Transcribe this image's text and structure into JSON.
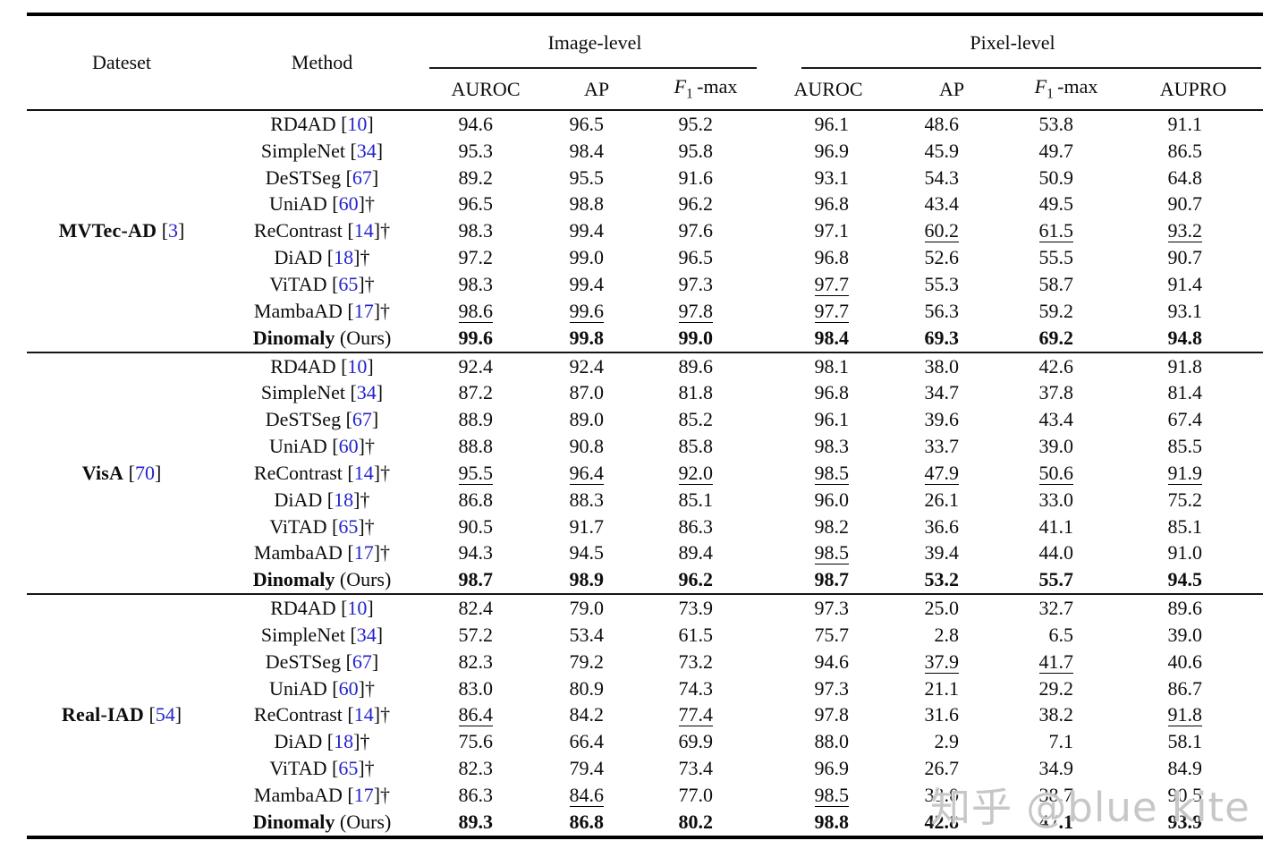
{
  "header": {
    "dataset_label": "Dateset",
    "method_label": "Method",
    "image_level_label": "Image-level",
    "pixel_level_label": "Pixel-level",
    "image_subcols": [
      "AUROC",
      "AP",
      "F1-max"
    ],
    "pixel_subcols": [
      "AUROC",
      "AP",
      "F1-max",
      "AUPRO"
    ]
  },
  "colors": {
    "citation_blue": "#2323cc",
    "text": "#0d0d0d",
    "watermark_gray": "#c7c7c7"
  },
  "groups": [
    {
      "dataset": {
        "name": "MVTec-AD",
        "cite": "3"
      },
      "rows": [
        {
          "method": {
            "name": "RD4AD",
            "cite": "10",
            "dagger": ""
          },
          "cells": [
            [
              "94.6",
              "n"
            ],
            [
              "96.5",
              "n"
            ],
            [
              "95.2",
              "n"
            ],
            [
              "96.1",
              "n"
            ],
            [
              "48.6",
              "n"
            ],
            [
              "53.8",
              "n"
            ],
            [
              "91.1",
              "n"
            ]
          ]
        },
        {
          "method": {
            "name": "SimpleNet",
            "cite": "34",
            "dagger": ""
          },
          "cells": [
            [
              "95.3",
              "n"
            ],
            [
              "98.4",
              "n"
            ],
            [
              "95.8",
              "n"
            ],
            [
              "96.9",
              "n"
            ],
            [
              "45.9",
              "n"
            ],
            [
              "49.7",
              "n"
            ],
            [
              "86.5",
              "n"
            ]
          ]
        },
        {
          "method": {
            "name": "DeSTSeg",
            "cite": "67",
            "dagger": ""
          },
          "cells": [
            [
              "89.2",
              "n"
            ],
            [
              "95.5",
              "n"
            ],
            [
              "91.6",
              "n"
            ],
            [
              "93.1",
              "n"
            ],
            [
              "54.3",
              "n"
            ],
            [
              "50.9",
              "n"
            ],
            [
              "64.8",
              "n"
            ]
          ]
        },
        {
          "method": {
            "name": "UniAD",
            "cite": "60",
            "dagger": "†"
          },
          "cells": [
            [
              "96.5",
              "n"
            ],
            [
              "98.8",
              "n"
            ],
            [
              "96.2",
              "n"
            ],
            [
              "96.8",
              "n"
            ],
            [
              "43.4",
              "n"
            ],
            [
              "49.5",
              "n"
            ],
            [
              "90.7",
              "n"
            ]
          ]
        },
        {
          "method": {
            "name": "ReContrast",
            "cite": "14",
            "dagger": "†"
          },
          "cells": [
            [
              "98.3",
              "n"
            ],
            [
              "99.4",
              "n"
            ],
            [
              "97.6",
              "n"
            ],
            [
              "97.1",
              "n"
            ],
            [
              "60.2",
              "u"
            ],
            [
              "61.5",
              "u"
            ],
            [
              "93.2",
              "u"
            ]
          ]
        },
        {
          "method": {
            "name": "DiAD",
            "cite": "18",
            "dagger": "†"
          },
          "cells": [
            [
              "97.2",
              "n"
            ],
            [
              "99.0",
              "n"
            ],
            [
              "96.5",
              "n"
            ],
            [
              "96.8",
              "n"
            ],
            [
              "52.6",
              "n"
            ],
            [
              "55.5",
              "n"
            ],
            [
              "90.7",
              "n"
            ]
          ]
        },
        {
          "method": {
            "name": "ViTAD",
            "cite": "65",
            "dagger": "†"
          },
          "cells": [
            [
              "98.3",
              "n"
            ],
            [
              "99.4",
              "n"
            ],
            [
              "97.3",
              "n"
            ],
            [
              "97.7",
              "u"
            ],
            [
              "55.3",
              "n"
            ],
            [
              "58.7",
              "n"
            ],
            [
              "91.4",
              "n"
            ]
          ]
        },
        {
          "method": {
            "name": "MambaAD",
            "cite": "17",
            "dagger": "†"
          },
          "cells": [
            [
              "98.6",
              "u"
            ],
            [
              "99.6",
              "u"
            ],
            [
              "97.8",
              "u"
            ],
            [
              "97.7",
              "u"
            ],
            [
              "56.3",
              "n"
            ],
            [
              "59.2",
              "n"
            ],
            [
              "93.1",
              "n"
            ]
          ]
        },
        {
          "method": {
            "name": "Dinomaly",
            "ours": true,
            "suffix": "(Ours)"
          },
          "cells": [
            [
              "99.6",
              "b"
            ],
            [
              "99.8",
              "b"
            ],
            [
              "99.0",
              "b"
            ],
            [
              "98.4",
              "b"
            ],
            [
              "69.3",
              "b"
            ],
            [
              "69.2",
              "b"
            ],
            [
              "94.8",
              "b"
            ]
          ]
        }
      ]
    },
    {
      "dataset": {
        "name": "VisA",
        "cite": "70"
      },
      "rows": [
        {
          "method": {
            "name": "RD4AD",
            "cite": "10",
            "dagger": ""
          },
          "cells": [
            [
              "92.4",
              "n"
            ],
            [
              "92.4",
              "n"
            ],
            [
              "89.6",
              "n"
            ],
            [
              "98.1",
              "n"
            ],
            [
              "38.0",
              "n"
            ],
            [
              "42.6",
              "n"
            ],
            [
              "91.8",
              "n"
            ]
          ]
        },
        {
          "method": {
            "name": "SimpleNet",
            "cite": "34",
            "dagger": ""
          },
          "cells": [
            [
              "87.2",
              "n"
            ],
            [
              "87.0",
              "n"
            ],
            [
              "81.8",
              "n"
            ],
            [
              "96.8",
              "n"
            ],
            [
              "34.7",
              "n"
            ],
            [
              "37.8",
              "n"
            ],
            [
              "81.4",
              "n"
            ]
          ]
        },
        {
          "method": {
            "name": "DeSTSeg",
            "cite": "67",
            "dagger": ""
          },
          "cells": [
            [
              "88.9",
              "n"
            ],
            [
              "89.0",
              "n"
            ],
            [
              "85.2",
              "n"
            ],
            [
              "96.1",
              "n"
            ],
            [
              "39.6",
              "n"
            ],
            [
              "43.4",
              "n"
            ],
            [
              "67.4",
              "n"
            ]
          ]
        },
        {
          "method": {
            "name": "UniAD",
            "cite": "60",
            "dagger": "†"
          },
          "cells": [
            [
              "88.8",
              "n"
            ],
            [
              "90.8",
              "n"
            ],
            [
              "85.8",
              "n"
            ],
            [
              "98.3",
              "n"
            ],
            [
              "33.7",
              "n"
            ],
            [
              "39.0",
              "n"
            ],
            [
              "85.5",
              "n"
            ]
          ]
        },
        {
          "method": {
            "name": "ReContrast",
            "cite": "14",
            "dagger": "†"
          },
          "cells": [
            [
              "95.5",
              "u"
            ],
            [
              "96.4",
              "u"
            ],
            [
              "92.0",
              "u"
            ],
            [
              "98.5",
              "u"
            ],
            [
              "47.9",
              "u"
            ],
            [
              "50.6",
              "u"
            ],
            [
              "91.9",
              "u"
            ]
          ]
        },
        {
          "method": {
            "name": "DiAD",
            "cite": "18",
            "dagger": "†"
          },
          "cells": [
            [
              "86.8",
              "n"
            ],
            [
              "88.3",
              "n"
            ],
            [
              "85.1",
              "n"
            ],
            [
              "96.0",
              "n"
            ],
            [
              "26.1",
              "n"
            ],
            [
              "33.0",
              "n"
            ],
            [
              "75.2",
              "n"
            ]
          ]
        },
        {
          "method": {
            "name": "ViTAD",
            "cite": "65",
            "dagger": "†"
          },
          "cells": [
            [
              "90.5",
              "n"
            ],
            [
              "91.7",
              "n"
            ],
            [
              "86.3",
              "n"
            ],
            [
              "98.2",
              "n"
            ],
            [
              "36.6",
              "n"
            ],
            [
              "41.1",
              "n"
            ],
            [
              "85.1",
              "n"
            ]
          ]
        },
        {
          "method": {
            "name": "MambaAD",
            "cite": "17",
            "dagger": "†"
          },
          "cells": [
            [
              "94.3",
              "n"
            ],
            [
              "94.5",
              "n"
            ],
            [
              "89.4",
              "n"
            ],
            [
              "98.5",
              "u"
            ],
            [
              "39.4",
              "n"
            ],
            [
              "44.0",
              "n"
            ],
            [
              "91.0",
              "n"
            ]
          ]
        },
        {
          "method": {
            "name": "Dinomaly",
            "ours": true,
            "suffix": "(Ours)"
          },
          "cells": [
            [
              "98.7",
              "b"
            ],
            [
              "98.9",
              "b"
            ],
            [
              "96.2",
              "b"
            ],
            [
              "98.7",
              "b"
            ],
            [
              "53.2",
              "b"
            ],
            [
              "55.7",
              "b"
            ],
            [
              "94.5",
              "b"
            ]
          ]
        }
      ]
    },
    {
      "dataset": {
        "name": "Real-IAD",
        "cite": "54"
      },
      "rows": [
        {
          "method": {
            "name": "RD4AD",
            "cite": "10",
            "dagger": ""
          },
          "cells": [
            [
              "82.4",
              "n"
            ],
            [
              "79.0",
              "n"
            ],
            [
              "73.9",
              "n"
            ],
            [
              "97.3",
              "n"
            ],
            [
              "25.0",
              "n"
            ],
            [
              "32.7",
              "n"
            ],
            [
              "89.6",
              "n"
            ]
          ]
        },
        {
          "method": {
            "name": "SimpleNet",
            "cite": "34",
            "dagger": ""
          },
          "cells": [
            [
              "57.2",
              "n"
            ],
            [
              "53.4",
              "n"
            ],
            [
              "61.5",
              "n"
            ],
            [
              "75.7",
              "n"
            ],
            [
              "2.8",
              "n"
            ],
            [
              "6.5",
              "n"
            ],
            [
              "39.0",
              "n"
            ]
          ]
        },
        {
          "method": {
            "name": "DeSTSeg",
            "cite": "67",
            "dagger": ""
          },
          "cells": [
            [
              "82.3",
              "n"
            ],
            [
              "79.2",
              "n"
            ],
            [
              "73.2",
              "n"
            ],
            [
              "94.6",
              "n"
            ],
            [
              "37.9",
              "u"
            ],
            [
              "41.7",
              "u"
            ],
            [
              "40.6",
              "n"
            ]
          ]
        },
        {
          "method": {
            "name": "UniAD",
            "cite": "60",
            "dagger": "†"
          },
          "cells": [
            [
              "83.0",
              "n"
            ],
            [
              "80.9",
              "n"
            ],
            [
              "74.3",
              "n"
            ],
            [
              "97.3",
              "n"
            ],
            [
              "21.1",
              "n"
            ],
            [
              "29.2",
              "n"
            ],
            [
              "86.7",
              "n"
            ]
          ]
        },
        {
          "method": {
            "name": "ReContrast",
            "cite": "14",
            "dagger": "†"
          },
          "cells": [
            [
              "86.4",
              "u"
            ],
            [
              "84.2",
              "n"
            ],
            [
              "77.4",
              "u"
            ],
            [
              "97.8",
              "n"
            ],
            [
              "31.6",
              "n"
            ],
            [
              "38.2",
              "n"
            ],
            [
              "91.8",
              "u"
            ]
          ]
        },
        {
          "method": {
            "name": "DiAD",
            "cite": "18",
            "dagger": "†"
          },
          "cells": [
            [
              "75.6",
              "n"
            ],
            [
              "66.4",
              "n"
            ],
            [
              "69.9",
              "n"
            ],
            [
              "88.0",
              "n"
            ],
            [
              "2.9",
              "n"
            ],
            [
              "7.1",
              "n"
            ],
            [
              "58.1",
              "n"
            ]
          ]
        },
        {
          "method": {
            "name": "ViTAD",
            "cite": "65",
            "dagger": "†"
          },
          "cells": [
            [
              "82.3",
              "n"
            ],
            [
              "79.4",
              "n"
            ],
            [
              "73.4",
              "n"
            ],
            [
              "96.9",
              "n"
            ],
            [
              "26.7",
              "n"
            ],
            [
              "34.9",
              "n"
            ],
            [
              "84.9",
              "n"
            ]
          ]
        },
        {
          "method": {
            "name": "MambaAD",
            "cite": "17",
            "dagger": "†"
          },
          "cells": [
            [
              "86.3",
              "n"
            ],
            [
              "84.6",
              "u"
            ],
            [
              "77.0",
              "n"
            ],
            [
              "98.5",
              "u"
            ],
            [
              "33.0",
              "n"
            ],
            [
              "38.7",
              "n"
            ],
            [
              "90.5",
              "n"
            ]
          ]
        },
        {
          "method": {
            "name": "Dinomaly",
            "ours": true,
            "suffix": "(Ours)"
          },
          "cells": [
            [
              "89.3",
              "b"
            ],
            [
              "86.8",
              "b"
            ],
            [
              "80.2",
              "b"
            ],
            [
              "98.8",
              "b"
            ],
            [
              "42.8",
              "b"
            ],
            [
              "47.1",
              "b"
            ],
            [
              "93.9",
              "b"
            ]
          ]
        }
      ]
    }
  ],
  "watermark": {
    "text": "知乎 @blue kite"
  }
}
